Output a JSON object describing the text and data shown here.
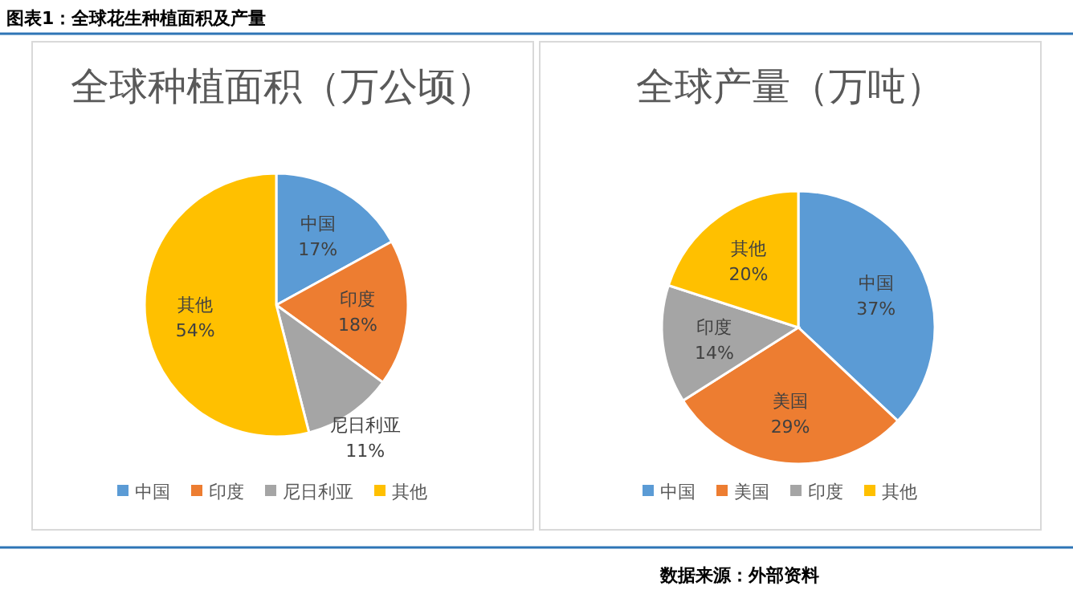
{
  "chart_data": [
    {
      "type": "pie",
      "title": "全球种植面积（万公顷）",
      "categories": [
        "中国",
        "印度",
        "尼日利亚",
        "其他"
      ],
      "values": [
        17,
        18,
        11,
        54
      ],
      "value_labels": [
        "17%",
        "18%",
        "11%",
        "54%"
      ],
      "colors": [
        "#5b9bd5",
        "#ed7d31",
        "#a5a5a5",
        "#ffc000"
      ],
      "legend": "bottom",
      "annotations": [
        "图表1：全球花生种植面积及产量"
      ]
    },
    {
      "type": "pie",
      "title": "全球产量（万吨）",
      "categories": [
        "中国",
        "美国",
        "印度",
        "其他"
      ],
      "values": [
        37,
        29,
        14,
        20
      ],
      "value_labels": [
        "37%",
        "29%",
        "14%",
        "20%"
      ],
      "colors": [
        "#5b9bd5",
        "#ed7d31",
        "#a5a5a5",
        "#ffc000"
      ],
      "legend": "bottom",
      "annotations": [
        "数据来源：外部资料"
      ]
    }
  ]
}
